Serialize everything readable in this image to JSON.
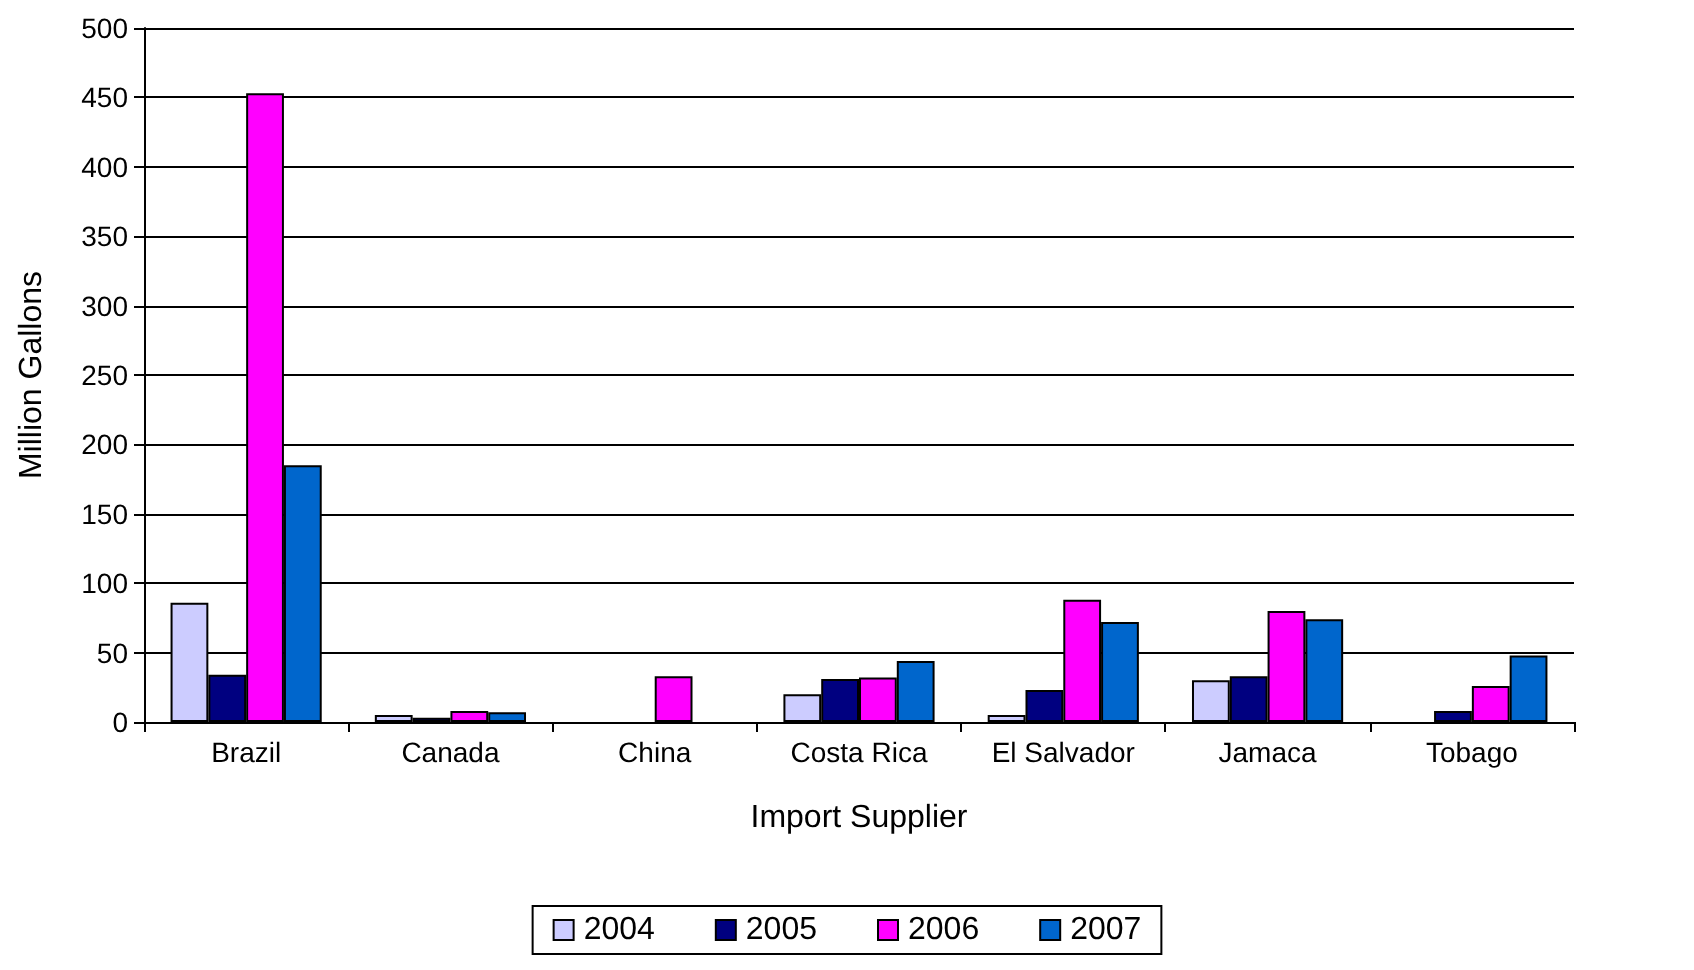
{
  "chart_data": {
    "type": "bar",
    "xlabel": "Import Supplier",
    "ylabel": "Million Gallons",
    "categories": [
      "Brazil",
      "Canada",
      "China",
      "Costa Rica",
      "El Salvador",
      "Jamaca",
      "Tobago"
    ],
    "series": [
      {
        "name": "2004",
        "color": "#ccccff",
        "values": [
          86,
          5,
          null,
          20,
          5,
          30,
          null
        ]
      },
      {
        "name": "2005",
        "color": "#000080",
        "values": [
          34,
          3,
          null,
          31,
          23,
          33,
          8
        ]
      },
      {
        "name": "2006",
        "color": "#ff00ff",
        "values": [
          453,
          8,
          33,
          32,
          88,
          80,
          26
        ]
      },
      {
        "name": "2007",
        "color": "#0066cc",
        "values": [
          185,
          7,
          null,
          44,
          72,
          74,
          48
        ]
      }
    ],
    "ylim": [
      0,
      500
    ],
    "yticks": [
      0,
      50,
      100,
      150,
      200,
      250,
      300,
      350,
      400,
      450,
      500
    ],
    "grid": "y",
    "legend": "bottom"
  }
}
